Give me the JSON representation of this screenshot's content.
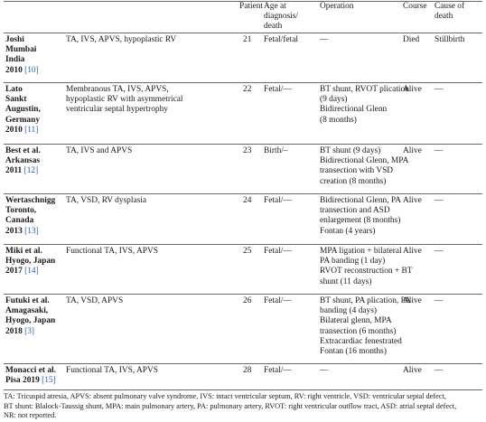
{
  "table": {
    "headers": {
      "patient": "Patient",
      "age": [
        "Age at",
        "diagnosis/",
        "death"
      ],
      "operation": "Operation",
      "course": "Course",
      "cause": [
        "Cause of",
        "death"
      ]
    },
    "rows": [
      {
        "author": [
          "Joshi",
          "Mumbai",
          "India"
        ],
        "year": "2010",
        "ref": "[10]",
        "diagnosis": [
          "TA, IVS, APVS, hypoplastic RV"
        ],
        "patient": "21",
        "age": "Fetal/fetal",
        "operation": [
          "—"
        ],
        "course": "Died",
        "cause": "Stillbirth"
      },
      {
        "author": [
          "Lato",
          "Sankt",
          "Augustin,",
          "Germany"
        ],
        "year": "2010",
        "ref": "[11]",
        "diagnosis": [
          "Membranous TA, IVS, APVS,",
          "hypoplastic RV with asymmetrical",
          "ventricular septal hypertrophy"
        ],
        "patient": "22",
        "age": "Fetal/—",
        "operation": [
          "BT shunt, RVOT plication",
          "(9 days)",
          "Bidirectional Glenn",
          "(8 months)"
        ],
        "course": "Alive",
        "cause": "—"
      },
      {
        "author": [
          "Best et al.",
          "Arkansas"
        ],
        "year": "2011",
        "ref": "[12]",
        "diagnosis": [
          "TA, IVS and APVS"
        ],
        "patient": "23",
        "age": "Birth/–",
        "operation": [
          "BT shunt (9 days)",
          "Bidirectional Glenn, MPA",
          "transection with VSD",
          "creation (8 months)"
        ],
        "course": "Alive",
        "cause": "—"
      },
      {
        "author": [
          "Wertaschnigg",
          "Toronto,",
          "Canada"
        ],
        "year": "2013",
        "ref": "[13]",
        "diagnosis": [
          "TA, VSD, RV dysplasia"
        ],
        "patient": "24",
        "age": "Fetal/—",
        "operation": [
          "Bidirectional Glenn, PA",
          "transection and ASD",
          "enlargement (8 months)",
          "Fontan (4 years)"
        ],
        "course": "Alive",
        "cause": "—"
      },
      {
        "author": [
          "Miki et al.",
          "Hyogo, Japan"
        ],
        "year": "2017",
        "ref": "[14]",
        "diagnosis": [
          "Functional TA, IVS, APVS"
        ],
        "patient": "25",
        "age": "Fetal/—",
        "operation": [
          "MPA ligation + bilateral",
          "PA banding (1 day)",
          "RVOT reconstruction + BT",
          "shunt (11 days)"
        ],
        "course": "Alive",
        "cause": "—"
      },
      {
        "author": [
          "Futuki et al.",
          "Amagasaki,",
          "Hyogo, Japan"
        ],
        "year": "2018",
        "ref": "[3]",
        "diagnosis": [
          "TA, VSD, APVS"
        ],
        "patient": "26",
        "age": "Fetal/—",
        "operation": [
          "BT shunt, PA plication, PA",
          "banding (4 days)",
          "Bilateral glenn, MPA",
          "transection (6 months)",
          "Extracardiac fenestrated",
          "Fontan (16 months)"
        ],
        "course": "Alive",
        "cause": "—"
      },
      {
        "author": [
          "Monacci et al."
        ],
        "year": "Pisa 2019",
        "ref": "[15]",
        "diagnosis": [
          "Functional TA, IVS, APVS"
        ],
        "patient": "28",
        "age": "Fetal/—",
        "operation": [
          "—"
        ],
        "course": "Alive",
        "cause": "—"
      }
    ]
  },
  "footnote": [
    "TA: Tricuspid atresia, APVS: absent pulmonary valve syndrome, IVS: intact ventricular septum, RV: right ventricle, VSD: ventricular septal defect,",
    "BT shunt: Blalock-Taussig shunt, MPA: main pulmonary artery, PA: pulmonary artery, RVOT: right ventricular outflow tract, ASD: atrial septal defect,",
    "NR: not reported."
  ]
}
